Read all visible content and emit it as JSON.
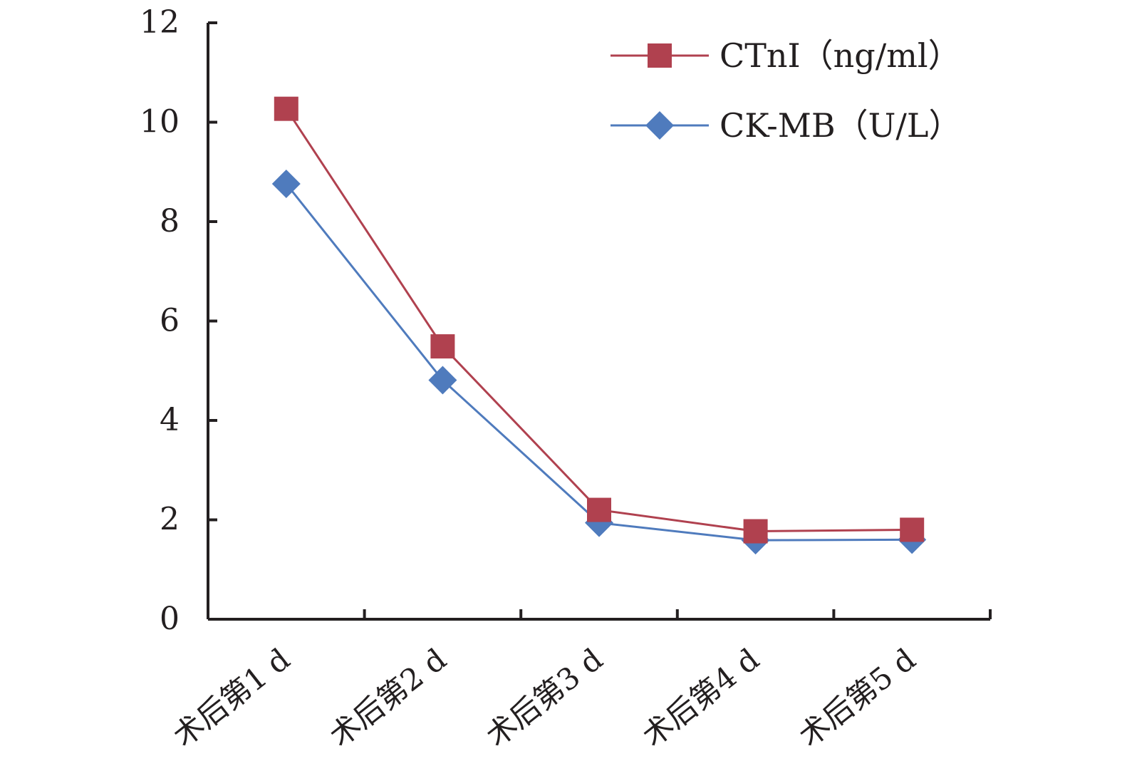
{
  "chart_data": {
    "type": "line",
    "categories": [
      "术后第1 d",
      "术后第2 d",
      "术后第3 d",
      "术后第4 d",
      "术后第5 d"
    ],
    "series": [
      {
        "name": "CTnI（ng/ml）",
        "values": [
          10.27,
          5.49,
          2.2,
          1.77,
          1.8
        ],
        "color": "#b0414f",
        "marker": "square"
      },
      {
        "name": "CK-MB（U/L）",
        "values": [
          8.76,
          4.81,
          1.94,
          1.59,
          1.6
        ],
        "color": "#4f7bbd",
        "marker": "diamond"
      }
    ],
    "yticks": [
      0,
      2,
      4,
      6,
      8,
      10,
      12
    ],
    "ylim": [
      0,
      12
    ],
    "legend_position": "top-right",
    "grid": false
  }
}
